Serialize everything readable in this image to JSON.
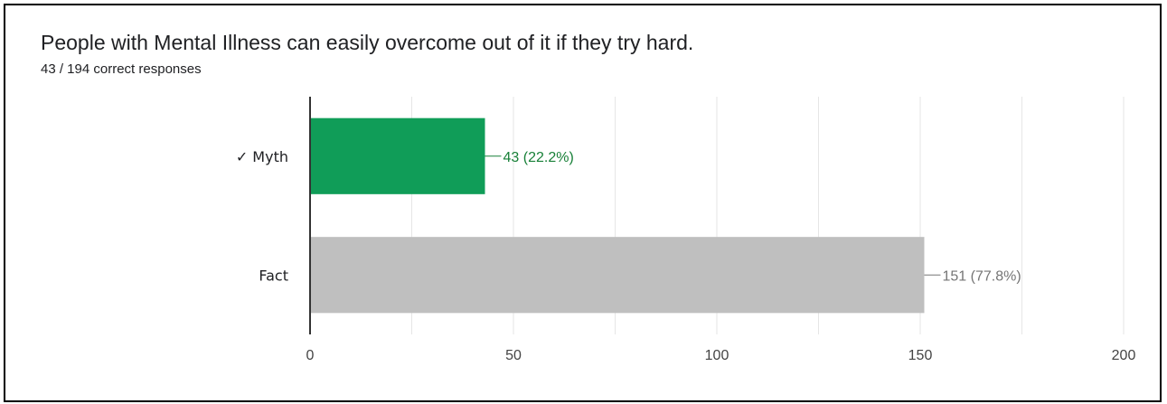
{
  "question": {
    "title": "People with Mental Illness can easily overcome out of it if they try hard.",
    "summary": "43 / 194 correct responses"
  },
  "chart_data": {
    "type": "bar",
    "orientation": "horizontal",
    "categories": [
      "✓ Myth",
      "Fact"
    ],
    "values": [
      43,
      151
    ],
    "data_labels": [
      "43 (22.2%)",
      "151 (77.8%)"
    ],
    "colors": [
      "#109d58",
      "#bfbfbf"
    ],
    "label_colors": [
      "#188038",
      "#757575"
    ],
    "xlim": [
      0,
      200
    ],
    "xticks": [
      0,
      50,
      100,
      150,
      200
    ],
    "grid": true,
    "title": "",
    "xlabel": "",
    "ylabel": ""
  }
}
